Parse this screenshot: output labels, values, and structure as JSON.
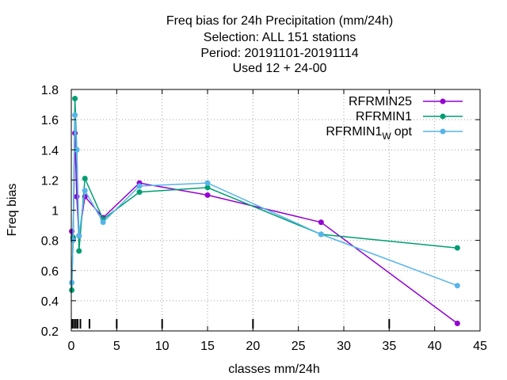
{
  "chart_data": {
    "type": "line",
    "title_lines": [
      "Freq bias  for 24h Precipitation (mm/24h)",
      "Selection: ALL    151 stations",
      "Period: 20191101-20191114",
      "Used  12 + 24-00"
    ],
    "xlabel": "classes mm/24h",
    "ylabel": "Freq bias",
    "xlim": [
      0,
      45
    ],
    "ylim": [
      0.2,
      1.8
    ],
    "xticks": [
      0,
      5,
      10,
      15,
      20,
      25,
      30,
      35,
      40,
      45
    ],
    "yticks": [
      0.2,
      0.4,
      0.6,
      0.8,
      1,
      1.2,
      1.4,
      1.6,
      1.8
    ],
    "ytick_labels": [
      "0.2",
      "0.4",
      "0.6",
      "0.8",
      "1",
      "1.2",
      "1.4",
      "1.6",
      "1.8"
    ],
    "class_marks": [
      0.1,
      0.3,
      0.5,
      0.7,
      1.0,
      2.0,
      5.0,
      10.0,
      20.0,
      35.0
    ],
    "grid": true,
    "legend_position": "top-right",
    "series": [
      {
        "name": "RFRMIN25",
        "color": "#9400d3",
        "x": [
          0.05,
          0.2,
          0.4,
          0.6,
          0.85,
          1.5,
          3.5,
          7.5,
          15,
          27.5,
          42.5
        ],
        "y": [
          0.86,
          0.81,
          1.51,
          1.09,
          0.83,
          1.09,
          0.95,
          1.18,
          1.1,
          0.92,
          0.25
        ]
      },
      {
        "name": "RFRMIN1",
        "color": "#009e73",
        "x": [
          0.05,
          0.2,
          0.4,
          0.6,
          0.85,
          1.5,
          3.5,
          7.5,
          15,
          27.5,
          42.5
        ],
        "y": [
          0.47,
          0.82,
          1.74,
          1.4,
          0.73,
          1.21,
          0.94,
          1.12,
          1.15,
          0.84,
          0.75
        ]
      },
      {
        "name_main": "RFRMIN1",
        "name_sub": "W",
        "name_suffix": "opt",
        "color": "#56b4e9",
        "x": [
          0.05,
          0.2,
          0.4,
          0.6,
          0.85,
          1.5,
          3.5,
          7.5,
          15,
          27.5,
          42.5
        ],
        "y": [
          0.52,
          0.8,
          1.63,
          1.4,
          0.83,
          1.13,
          0.92,
          1.16,
          1.18,
          0.84,
          0.5
        ]
      }
    ]
  }
}
